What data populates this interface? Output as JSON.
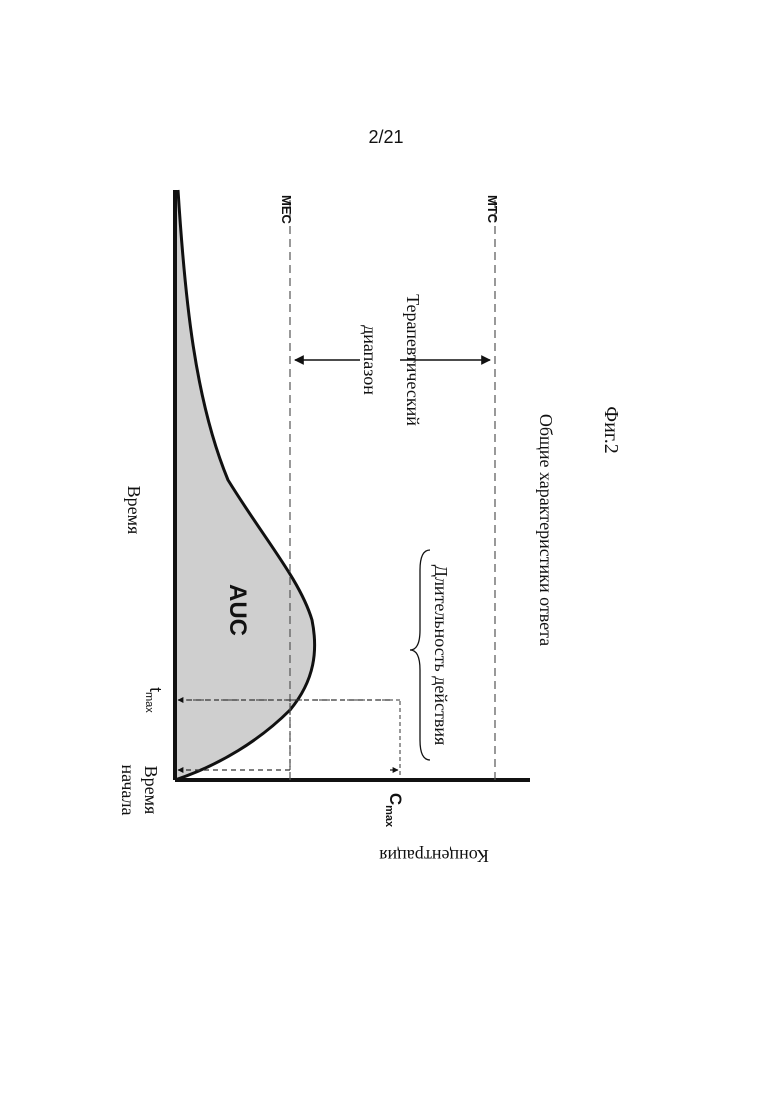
{
  "page": {
    "number": "2/21"
  },
  "figure": {
    "label": "Фиг.2",
    "subtitle": "Общие характеристики ответа",
    "y_axis_label": "Концентрация",
    "x_axis_label": "Время",
    "x_origin_label_line1": "Время",
    "x_origin_label_line2": "начала",
    "cmax": {
      "main": "C",
      "sub": "max"
    },
    "tmax": {
      "main": "t",
      "sub": "max"
    },
    "mtc_label": "MTC",
    "mec_label": "MEC",
    "therapeutic_range_line1": "Терапевтический",
    "therapeutic_range_line2": "диапазон",
    "duration_label": "Длительность действия",
    "auc_label": "AUC",
    "colors": {
      "fill": "#cfcfcf",
      "line": "#111111"
    }
  }
}
